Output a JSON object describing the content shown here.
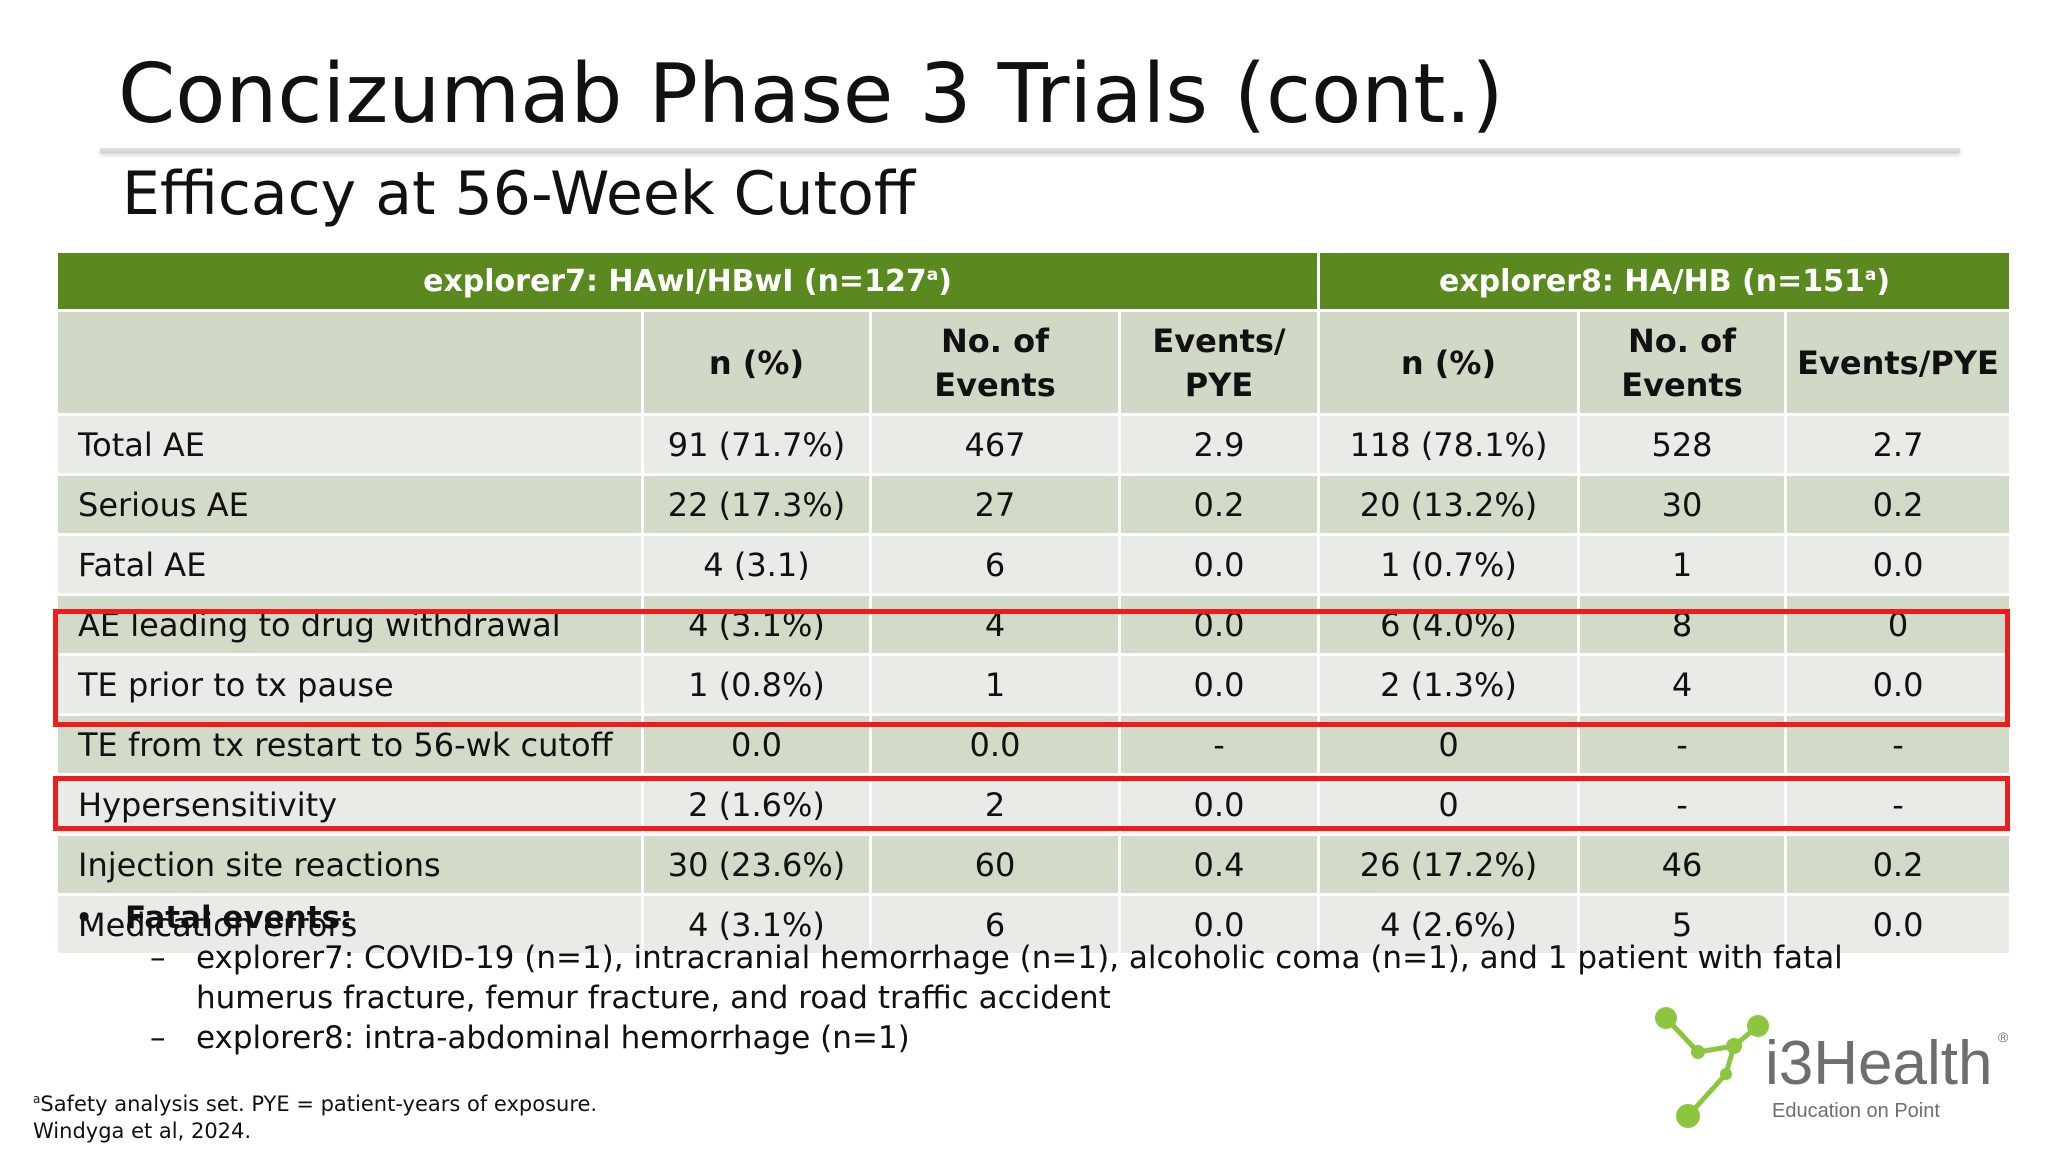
{
  "slide": {
    "title": "Concizumab Phase 3 Trials (cont.)",
    "subtitle": "Efficacy at 56-Week Cutoff"
  },
  "table": {
    "groups": [
      {
        "label": "explorer7: HAwI/HBwI (n=127",
        "sup": "a",
        "close": ")"
      },
      {
        "label": "explorer8: HA/HB (n=151",
        "sup": "a",
        "close": ")"
      }
    ],
    "columns": [
      "",
      "n (%)",
      "No. of Events",
      "Events/ PYE",
      "n (%)",
      "No. of Events",
      "Events/PYE"
    ],
    "rows": [
      [
        "Total AE",
        "91 (71.7%)",
        "467",
        "2.9",
        "118 (78.1%)",
        "528",
        "2.7"
      ],
      [
        "Serious AE",
        "22 (17.3%)",
        "27",
        "0.2",
        "20 (13.2%)",
        "30",
        "0.2"
      ],
      [
        "Fatal AE",
        "4 (3.1)",
        "6",
        "0.0",
        "1 (0.7%)",
        "1",
        "0.0"
      ],
      [
        "AE leading to drug withdrawal",
        "4 (3.1%)",
        "4",
        "0.0",
        "6 (4.0%)",
        "8",
        "0"
      ],
      [
        "TE prior to tx pause",
        "1 (0.8%)",
        "1",
        "0.0",
        "2 (1.3%)",
        "4",
        "0.0"
      ],
      [
        "TE from tx restart to 56-wk cutoff",
        "0.0",
        "0.0",
        "-",
        "0",
        "-",
        "-"
      ],
      [
        "Hypersensitivity",
        "2 (1.6%)",
        "2",
        "0.0",
        "0",
        "-",
        "-"
      ],
      [
        "Injection site reactions",
        "30 (23.6%)",
        "60",
        "0.4",
        "26 (17.2%)",
        "46",
        "0.2"
      ],
      [
        "Medication errors",
        "4 (3.1%)",
        "6",
        "0.0",
        "4 (2.6%)",
        "5",
        "0.0"
      ]
    ]
  },
  "notes": {
    "bullet": "•",
    "heading": "Fatal events:",
    "items": [
      {
        "dash": "–",
        "text": "explorer7: COVID-19 (n=1), intracranial hemorrhage (n=1), alcoholic coma (n=1), and 1 patient with fatal humerus fracture, femur fracture, and road traffic accident"
      },
      {
        "dash": "–",
        "text": "explorer8: intra-abdominal hemorrhage (n=1)"
      }
    ]
  },
  "footnote": {
    "sup": "a",
    "line1": "Safety analysis set. PYE = patient-years of exposure.",
    "line2": "Windyga et al, 2024."
  },
  "logo": {
    "name": "i3Health",
    "registered": "®",
    "tagline": "Education on Point",
    "colors": {
      "green": "#8cc63f",
      "gray": "#6d6e71"
    }
  },
  "colors": {
    "header_green": "#5a8a1f",
    "header_row": "#d0d9c6",
    "row_light": "#e8ebe6",
    "row_dark": "#d2dbc8",
    "highlight": "#ee1c1c"
  }
}
